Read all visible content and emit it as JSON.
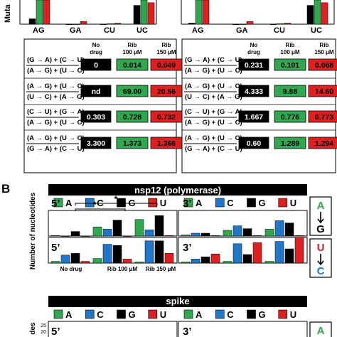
{
  "panelA": {
    "y_label_fragment": "Muta",
    "categories": [
      "AG",
      "GA",
      "CU",
      "UC"
    ]
  },
  "tableHeader": {
    "col1": [
      "No",
      "drug"
    ],
    "col2": [
      "Rib",
      "100 μM"
    ],
    "col3": [
      "Rib",
      "150 μM"
    ]
  },
  "formulas": [
    [
      "(G → A) + (C → U)",
      "(A → G) + (U → C)"
    ],
    [
      "(A → G) + (U → C)",
      "(U → C) + (A → G)"
    ],
    [
      "(C → U) + (G → A)",
      "(A → G) + (U → C)"
    ],
    [
      "(A → G) + (U → C)",
      "(G → A) + (C → U)"
    ]
  ],
  "tableLeft": {
    "rows": [
      [
        "0",
        "0.014",
        "0.049"
      ],
      [
        "nd",
        "69.00",
        "20.56"
      ],
      [
        "0.303",
        "0.728",
        "0.732"
      ],
      [
        "3.300",
        "1.373",
        "1.366"
      ]
    ]
  },
  "tableRight": {
    "rows": [
      [
        "0.231",
        "0.101",
        "0.068"
      ],
      [
        "4.333",
        "9.88",
        "14.60"
      ],
      [
        "1.667",
        "0.776",
        "0.773"
      ],
      [
        "0.60",
        "1.289",
        "1.294"
      ]
    ]
  },
  "panelB": {
    "label": "B",
    "title": "nsp12 (polymerase)",
    "legend": [
      "A",
      "C",
      "G",
      "U"
    ],
    "y_label": "Number of nucleotides",
    "x_categories": [
      "No drug",
      "Rib 100 μM",
      "Rib 150 μM"
    ],
    "end5": "5’",
    "end3": "3’",
    "sig": "*",
    "mut1": {
      "from": "A",
      "to": "G"
    },
    "mut2": {
      "from": "U",
      "to": "C"
    }
  },
  "spike": {
    "title": "spike",
    "y_label_fragment": "des",
    "ticks": [
      "25",
      "20"
    ]
  },
  "colors": {
    "A": "#2fa84f",
    "C": "#1f78c8",
    "G": "#000000",
    "U": "#e02020"
  },
  "chart_data": [
    {
      "type": "bar",
      "title": "nsp12 (polymerase) 5’ A→G",
      "categories": [
        "No drug",
        "Rib 100 μM",
        "Rib 150 μM"
      ],
      "series": [
        {
          "name": "A",
          "values": [
            1,
            16,
            29
          ]
        },
        {
          "name": "C",
          "values": [
            0,
            12,
            11
          ]
        },
        {
          "name": "G",
          "values": [
            8,
            28,
            36
          ]
        },
        {
          "name": "U",
          "values": [
            0,
            0,
            1
          ]
        }
      ],
      "ylim": [
        0,
        45
      ]
    },
    {
      "type": "bar",
      "title": "nsp12 (polymerase) 3’ A→G",
      "categories": [
        "No drug",
        "Rib 100 μM",
        "Rib 150 μM"
      ],
      "series": [
        {
          "name": "A",
          "values": [
            2,
            10,
            12
          ]
        },
        {
          "name": "C",
          "values": [
            5,
            18,
            27
          ]
        },
        {
          "name": "G",
          "values": [
            5,
            13,
            23
          ]
        },
        {
          "name": "U",
          "values": [
            1,
            1,
            1
          ]
        }
      ],
      "ylim": [
        0,
        45
      ]
    },
    {
      "type": "bar",
      "title": "nsp12 (polymerase) 5’ U→C",
      "categories": [
        "No drug",
        "Rib 100 μM",
        "Rib 150 μM"
      ],
      "series": [
        {
          "name": "A",
          "values": [
            3,
            8,
            2
          ]
        },
        {
          "name": "C",
          "values": [
            14,
            33,
            39
          ]
        },
        {
          "name": "G",
          "values": [
            17,
            31,
            39
          ]
        },
        {
          "name": "U",
          "values": [
            3,
            7,
            17
          ]
        }
      ],
      "ylim": [
        0,
        45
      ]
    },
    {
      "type": "bar",
      "title": "nsp12 (polymerase) 3’ U→C",
      "categories": [
        "No drug",
        "Rib 100 μM",
        "Rib 150 μM"
      ],
      "series": [
        {
          "name": "A",
          "values": [
            2,
            3,
            3
          ]
        },
        {
          "name": "C",
          "values": [
            7,
            34,
            38
          ]
        },
        {
          "name": "G",
          "values": [
            11,
            15,
            25
          ]
        },
        {
          "name": "U",
          "values": [
            16,
            36,
            45
          ]
        }
      ],
      "ylim": [
        0,
        45
      ]
    },
    {
      "type": "bar",
      "title": "Panel A (cropped)",
      "categories": [
        "AG",
        "GA",
        "CU",
        "UC"
      ],
      "series": [
        {
          "name": "No drug",
          "values": [
            10,
            0,
            0,
            35
          ]
        },
        {
          "name": "Rib 100 μM",
          "values": [
            45,
            0,
            1,
            45
          ]
        },
        {
          "name": "Rib 150 μM",
          "values": [
            45,
            5,
            2,
            40
          ]
        }
      ]
    }
  ]
}
